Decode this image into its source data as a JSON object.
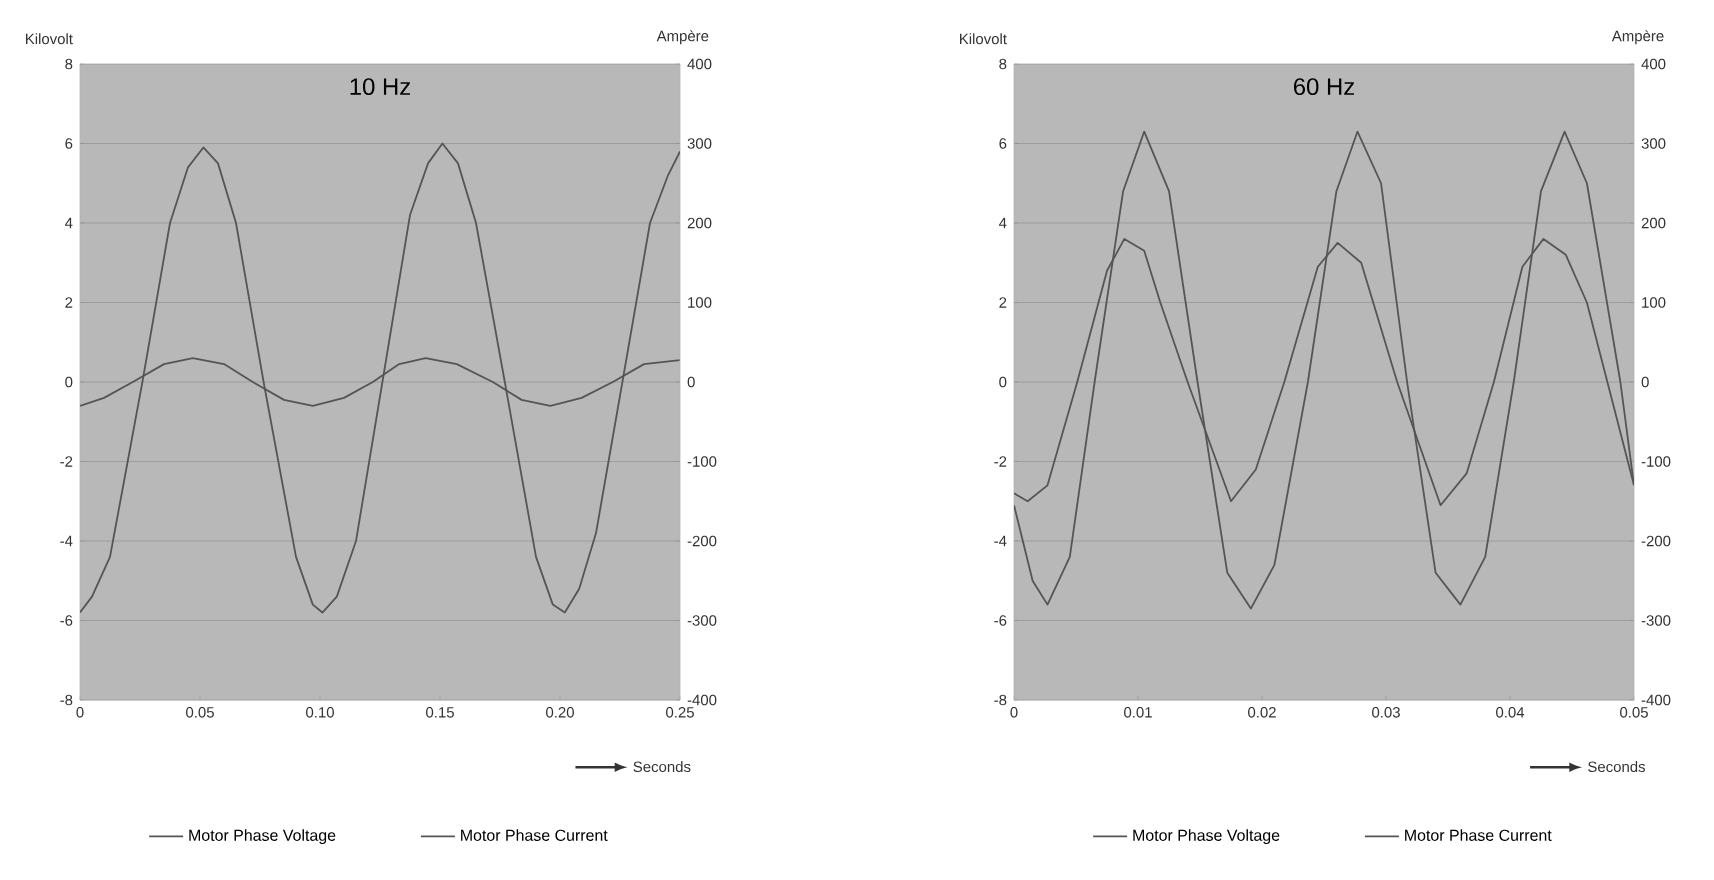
{
  "chart_data": [
    {
      "type": "line",
      "title": "10 Hz",
      "xlabel": "Seconds",
      "ylabel": "Kilovolt",
      "y2label": "Ampère",
      "xlim": [
        0,
        0.25
      ],
      "xticks": [
        0,
        0.05,
        {
          "value": 0.1,
          "label": "0.10"
        },
        0.15,
        {
          "value": 0.2,
          "label": "0.20"
        },
        0.25
      ],
      "ylim": [
        -8,
        8
      ],
      "yticks": [
        -8,
        -6,
        -4,
        -2,
        0,
        2,
        4,
        6,
        8
      ],
      "y2lim": [
        -400,
        400
      ],
      "y2ticks": [
        -400,
        -300,
        -200,
        -100,
        0,
        100,
        200,
        300,
        400
      ],
      "grid": "y",
      "legend": "bottom",
      "series": [
        {
          "name": "Motor Phase Voltage",
          "color": "#555555",
          "x": [
            0,
            0.01,
            0.022,
            0.035,
            0.047,
            0.06,
            0.072,
            0.085,
            0.097,
            0.11,
            0.122,
            0.133,
            0.144,
            0.157,
            0.172,
            0.184,
            0.196,
            0.209,
            0.222,
            0.235,
            0.25
          ],
          "values": [
            -0.6,
            -0.4,
            0,
            0.45,
            0.6,
            0.45,
            0,
            -0.45,
            -0.6,
            -0.4,
            0,
            0.45,
            0.6,
            0.45,
            0,
            -0.45,
            -0.6,
            -0.4,
            0,
            0.45,
            0.55
          ]
        },
        {
          "name": "Motor Phase Current",
          "color": "#555555",
          "axis": "y2",
          "x": [
            0,
            0.005,
            0.0125,
            0.026,
            0.0375,
            0.045,
            0.0514,
            0.0575,
            0.065,
            0.0765,
            0.09,
            0.097,
            0.101,
            0.107,
            0.115,
            0.126,
            0.1375,
            0.145,
            0.151,
            0.1575,
            0.165,
            0.177,
            0.19,
            0.197,
            0.202,
            0.208,
            0.215,
            0.226,
            0.2375,
            0.245,
            0.25
          ],
          "values": [
            -290,
            -270,
            -220,
            0,
            200,
            270,
            295,
            275,
            200,
            0,
            -220,
            -280,
            -290,
            -270,
            -200,
            0,
            210,
            275,
            300,
            275,
            200,
            0,
            -220,
            -280,
            -290,
            -260,
            -190,
            0,
            200,
            260,
            290
          ]
        }
      ]
    },
    {
      "type": "line",
      "title": "60 Hz",
      "xlabel": "Seconds",
      "ylabel": "Kilovolt",
      "y2label": "Ampère",
      "xlim": [
        0,
        0.05
      ],
      "xticks": [
        0,
        0.01,
        0.02,
        0.03,
        0.04,
        0.05
      ],
      "ylim": [
        -8,
        8
      ],
      "yticks": [
        -8,
        -6,
        -4,
        -2,
        0,
        2,
        4,
        6,
        8
      ],
      "y2lim": [
        -400,
        400
      ],
      "y2ticks": [
        -400,
        -300,
        -200,
        -100,
        0,
        100,
        200,
        300,
        400
      ],
      "grid": "y",
      "legend": "bottom",
      "series": [
        {
          "name": "Motor Phase Voltage",
          "color": "#555555",
          "x": [
            0,
            0.0011,
            0.0027,
            0.0051,
            0.0075,
            0.0089,
            0.0105,
            0.0118,
            0.014,
            0.0175,
            0.0195,
            0.0218,
            0.0245,
            0.0261,
            0.028,
            0.0309,
            0.0344,
            0.0365,
            0.0387,
            0.041,
            0.0427,
            0.0445,
            0.0462,
            0.05
          ],
          "values": [
            -2.8,
            -3.0,
            -2.6,
            0,
            2.8,
            3.6,
            3.3,
            2.0,
            0,
            -3.0,
            -2.2,
            0,
            2.9,
            3.5,
            3.0,
            0,
            -3.1,
            -2.3,
            0,
            2.9,
            3.6,
            3.2,
            2.0,
            -2.6
          ]
        },
        {
          "name": "Motor Phase Current",
          "color": "#555555",
          "axis": "y2",
          "x": [
            0,
            0.0015,
            0.0027,
            0.0045,
            0.0065,
            0.0088,
            0.0105,
            0.0125,
            0.0148,
            0.0172,
            0.0191,
            0.021,
            0.0237,
            0.026,
            0.0277,
            0.0296,
            0.0317,
            0.034,
            0.036,
            0.038,
            0.0403,
            0.0425,
            0.0444,
            0.0462,
            0.0489,
            0.05
          ],
          "values": [
            -155,
            -250,
            -280,
            -220,
            0,
            240,
            315,
            240,
            0,
            -240,
            -285,
            -230,
            0,
            240,
            315,
            250,
            0,
            -240,
            -280,
            -220,
            0,
            240,
            315,
            250,
            0,
            -130
          ]
        }
      ]
    }
  ]
}
